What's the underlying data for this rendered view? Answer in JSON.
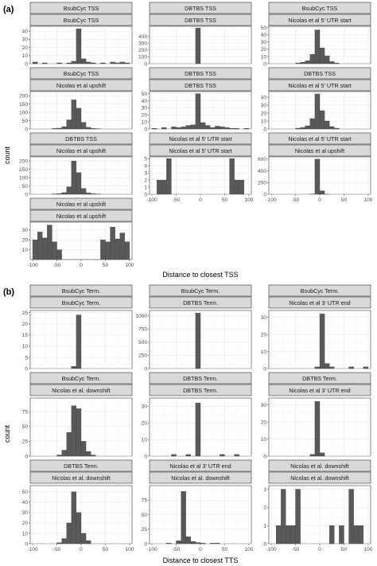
{
  "figure": {
    "panel_a_label": "(a)",
    "panel_b_label": "(b)",
    "ylabel": "count",
    "xlabel_a": "Distance to closest TSS",
    "xlabel_b": "Distance to closest TTS"
  },
  "chart_data": [
    {
      "type": "bar",
      "section": "a",
      "strips": [
        "BsubCyc TSS",
        "BsubCyc TSS"
      ],
      "x": [
        -95,
        -85,
        -75,
        -65,
        -55,
        -45,
        -35,
        -25,
        -15,
        -5,
        5,
        15,
        25,
        35,
        45,
        55,
        65,
        75,
        85,
        95
      ],
      "values": [
        2,
        0,
        1,
        0,
        0,
        1,
        0,
        1,
        3,
        43,
        6,
        2,
        1,
        0,
        1,
        0,
        2,
        1,
        2,
        1
      ],
      "ylim": [
        0,
        46
      ],
      "yticks": [
        0,
        10,
        20,
        30,
        40
      ],
      "xlim": [
        -105,
        105
      ],
      "xticks": [
        -100,
        -50,
        0,
        50,
        100
      ]
    },
    {
      "type": "bar",
      "section": "a",
      "strips": [
        "DBTBS TSS",
        "DBTBS TSS"
      ],
      "x": [
        -95,
        -85,
        -75,
        -65,
        -55,
        -45,
        -35,
        -25,
        -15,
        -5,
        5,
        15,
        25,
        35,
        45,
        55,
        65,
        75,
        85,
        95
      ],
      "values": [
        0,
        0,
        0,
        0,
        0,
        0,
        0,
        0,
        0,
        520,
        0,
        0,
        0,
        0,
        0,
        0,
        0,
        0,
        0,
        0
      ],
      "ylim": [
        0,
        545
      ],
      "yticks": [
        0,
        100,
        200,
        300,
        400
      ],
      "xlim": [
        -105,
        105
      ],
      "xticks": [
        -100,
        -50,
        0,
        50,
        100
      ]
    },
    {
      "type": "bar",
      "section": "a",
      "strips": [
        "BsubCyc TSS",
        "Nicolas et al 5' UTR start"
      ],
      "x": [
        -95,
        -85,
        -75,
        -65,
        -55,
        -45,
        -35,
        -25,
        -15,
        -5,
        5,
        15,
        25,
        35,
        45,
        55,
        65,
        75,
        85,
        95
      ],
      "values": [
        0,
        0,
        0,
        0,
        0,
        1,
        2,
        4,
        13,
        47,
        22,
        11,
        3,
        1,
        0,
        0,
        0,
        0,
        0,
        0
      ],
      "ylim": [
        0,
        52
      ],
      "yticks": [
        0,
        10,
        20,
        30,
        40,
        50
      ],
      "xlim": [
        -105,
        105
      ],
      "xticks": [
        -100,
        -50,
        0,
        50,
        100
      ]
    },
    {
      "type": "bar",
      "section": "a",
      "strips": [
        "BsubCyc TSS",
        "Nicolas et al upshift"
      ],
      "x": [
        -95,
        -85,
        -75,
        -65,
        -55,
        -45,
        -35,
        -25,
        -15,
        -5,
        5,
        15,
        25,
        35,
        45,
        55,
        65,
        75,
        85,
        95
      ],
      "values": [
        0,
        0,
        0,
        0,
        3,
        5,
        14,
        55,
        175,
        125,
        40,
        10,
        4,
        1,
        0,
        0,
        0,
        0,
        0,
        0
      ],
      "ylim": [
        0,
        225
      ],
      "yticks": [
        0,
        50,
        100,
        150,
        200
      ],
      "xlim": [
        -105,
        105
      ],
      "xticks": [
        -100,
        -50,
        0,
        50,
        100
      ]
    },
    {
      "type": "bar",
      "section": "a",
      "strips": [
        "DBTBS TSS",
        "DBTBS TSS"
      ],
      "x": [
        -95,
        -85,
        -75,
        -65,
        -55,
        -45,
        -35,
        -25,
        -15,
        -5,
        5,
        15,
        25,
        35,
        45,
        55,
        65,
        75,
        85,
        95
      ],
      "values": [
        1,
        0,
        2,
        0,
        3,
        2,
        3,
        5,
        6,
        50,
        9,
        5,
        2,
        4,
        3,
        2,
        1,
        1,
        0,
        1
      ],
      "ylim": [
        0,
        53
      ],
      "yticks": [
        0,
        10,
        20,
        30,
        40,
        50
      ],
      "xlim": [
        -105,
        105
      ],
      "xticks": [
        -100,
        -50,
        0,
        50,
        100
      ]
    },
    {
      "type": "bar",
      "section": "a",
      "strips": [
        "DBTBS TSS",
        "Nicolas et al 5' UTR start"
      ],
      "x": [
        -95,
        -85,
        -75,
        -65,
        -55,
        -45,
        -35,
        -25,
        -15,
        -5,
        5,
        15,
        25,
        35,
        45,
        55,
        65,
        75,
        85,
        95
      ],
      "values": [
        0,
        0,
        0,
        0,
        0,
        1,
        2,
        4,
        13,
        44,
        23,
        10,
        3,
        1,
        0,
        0,
        0,
        0,
        0,
        0
      ],
      "ylim": [
        0,
        47
      ],
      "yticks": [
        0,
        10,
        20,
        30,
        40
      ],
      "xlim": [
        -105,
        105
      ],
      "xticks": [
        -100,
        -50,
        0,
        50,
        100
      ]
    },
    {
      "type": "bar",
      "section": "a",
      "strips": [
        "DBTBS TSS",
        "Nicolas et al upshift"
      ],
      "x": [
        -95,
        -85,
        -75,
        -65,
        -55,
        -45,
        -35,
        -25,
        -15,
        -5,
        5,
        15,
        25,
        35,
        45,
        55,
        65,
        75,
        85,
        95
      ],
      "values": [
        0,
        0,
        0,
        0,
        2,
        4,
        10,
        45,
        200,
        130,
        35,
        8,
        3,
        1,
        0,
        0,
        0,
        0,
        0,
        0
      ],
      "ylim": [
        0,
        225
      ],
      "yticks": [
        0,
        50,
        100,
        150,
        200
      ],
      "xlim": [
        -105,
        105
      ],
      "xticks": [
        -100,
        -50,
        0,
        50,
        100
      ]
    },
    {
      "type": "bar",
      "section": "a",
      "strips": [
        "Nicolas et al 5' UTR start",
        "Nicolas et al 5' UTR start"
      ],
      "x": [
        -95,
        -85,
        -75,
        -65,
        -55,
        -45,
        -35,
        -25,
        -15,
        -5,
        5,
        15,
        25,
        35,
        45,
        55,
        65,
        75,
        85,
        95
      ],
      "values": [
        0,
        2,
        2,
        5,
        0,
        0,
        0,
        0,
        0,
        0,
        0,
        0,
        0,
        0,
        0,
        0,
        5,
        2,
        2,
        0
      ],
      "ylim": [
        0,
        5.25
      ],
      "yticks": [
        0,
        1,
        2,
        3,
        4,
        5
      ],
      "xlim": [
        -105,
        105
      ],
      "xticks": [
        -100,
        -50,
        0,
        50,
        100
      ]
    },
    {
      "type": "bar",
      "section": "a",
      "strips": [
        "Nicolas et al 5' UTR start",
        "Nicolas et al upshift"
      ],
      "x": [
        -95,
        -85,
        -75,
        -65,
        -55,
        -45,
        -35,
        -25,
        -15,
        -5,
        5,
        15,
        25,
        35,
        45,
        55,
        65,
        75,
        85,
        95
      ],
      "values": [
        0,
        0,
        0,
        0,
        0,
        0,
        0,
        0,
        3,
        600,
        60,
        2,
        0,
        0,
        0,
        0,
        0,
        0,
        0,
        0
      ],
      "ylim": [
        0,
        640
      ],
      "yticks": [
        0,
        200,
        400,
        600
      ],
      "xlim": [
        -105,
        105
      ],
      "xticks": [
        -100,
        -50,
        0,
        50,
        100
      ]
    },
    {
      "type": "bar",
      "section": "a",
      "strips": [
        "Nicolas et al upshift",
        "Nicolas et al upshift"
      ],
      "x": [
        -95,
        -85,
        -75,
        -65,
        -55,
        -45,
        -35,
        -25,
        -15,
        -5,
        5,
        15,
        25,
        35,
        45,
        55,
        65,
        75,
        85,
        95
      ],
      "values": [
        20,
        28,
        22,
        35,
        18,
        10,
        0,
        0,
        0,
        0,
        0,
        0,
        0,
        0,
        20,
        18,
        33,
        21,
        27,
        18
      ],
      "ylim": [
        0,
        38
      ],
      "yticks": [
        10,
        20,
        30
      ],
      "xlim": [
        -105,
        105
      ],
      "xticks": [
        -100,
        -50,
        0,
        50,
        100
      ]
    },
    {
      "type": "bar",
      "section": "b",
      "strips": [
        "BsubCyc Term.",
        "BsubCyc Term."
      ],
      "x": [
        -95,
        -85,
        -75,
        -65,
        -55,
        -45,
        -35,
        -25,
        -15,
        -5,
        5,
        15,
        25,
        35,
        45,
        55,
        65,
        75,
        85,
        95
      ],
      "values": [
        0,
        0,
        0,
        0,
        0,
        0,
        0,
        0,
        1,
        24,
        0,
        0,
        0,
        0,
        0,
        0,
        0,
        0,
        0,
        0
      ],
      "ylim": [
        0,
        26
      ],
      "yticks": [
        0,
        5,
        10,
        15,
        20,
        25
      ],
      "xlim": [
        -105,
        105
      ],
      "xticks": [
        -100,
        -50,
        0,
        50,
        100
      ]
    },
    {
      "type": "bar",
      "section": "b",
      "strips": [
        "BsubCyc Term.",
        "DBTBS Term."
      ],
      "x": [
        -95,
        -85,
        -75,
        -65,
        -55,
        -45,
        -35,
        -25,
        -15,
        -5,
        5,
        15,
        25,
        35,
        45,
        55,
        65,
        75,
        85,
        95
      ],
      "values": [
        0,
        0,
        0,
        0,
        0,
        0,
        0,
        0,
        0,
        1050,
        0,
        0,
        0,
        0,
        0,
        0,
        0,
        0,
        0,
        0
      ],
      "ylim": [
        0,
        1100
      ],
      "yticks": [
        0,
        250,
        500,
        750,
        1000
      ],
      "xlim": [
        -105,
        105
      ],
      "xticks": [
        -100,
        -50,
        0,
        50,
        100
      ]
    },
    {
      "type": "bar",
      "section": "b",
      "strips": [
        "BsubCyc Term.",
        "Nicolas et al 3' UTR end"
      ],
      "x": [
        -95,
        -85,
        -75,
        -65,
        -55,
        -45,
        -35,
        -25,
        -15,
        -5,
        5,
        15,
        25,
        35,
        45,
        55,
        65,
        75,
        85,
        95
      ],
      "values": [
        0,
        0,
        0,
        0,
        0,
        0,
        0,
        0,
        0,
        1,
        32,
        3,
        1,
        0,
        0,
        0,
        1,
        0,
        0,
        1
      ],
      "ylim": [
        0,
        34
      ],
      "yticks": [
        0,
        10,
        20,
        30
      ],
      "xlim": [
        -105,
        105
      ],
      "xticks": [
        -100,
        -50,
        0,
        50,
        100
      ]
    },
    {
      "type": "bar",
      "section": "b",
      "strips": [
        "BsubCyc Term.",
        "Nicolas et al. downshift"
      ],
      "x": [
        -95,
        -85,
        -75,
        -65,
        -55,
        -45,
        -35,
        -25,
        -15,
        -5,
        5,
        15,
        25,
        35,
        45,
        55,
        65,
        75,
        85,
        95
      ],
      "values": [
        0,
        0,
        0,
        0,
        0,
        2,
        10,
        40,
        85,
        80,
        25,
        8,
        2,
        0,
        0,
        0,
        0,
        0,
        0,
        0
      ],
      "ylim": [
        0,
        98
      ],
      "yticks": [
        0,
        25,
        50,
        75
      ],
      "xlim": [
        -105,
        105
      ],
      "xticks": [
        -100,
        -50,
        0,
        50,
        100
      ]
    },
    {
      "type": "bar",
      "section": "b",
      "strips": [
        "DBTBS Term.",
        "DBTBS Term."
      ],
      "x": [
        -95,
        -85,
        -75,
        -65,
        -55,
        -45,
        -35,
        -25,
        -15,
        -5,
        5,
        15,
        25,
        35,
        45,
        55,
        65,
        75,
        85,
        95
      ],
      "values": [
        0,
        0,
        0,
        0,
        1,
        0,
        0,
        1,
        0,
        32,
        0,
        0,
        0,
        0,
        1,
        0,
        0,
        1,
        0,
        0
      ],
      "ylim": [
        0,
        35
      ],
      "yticks": [
        0,
        10,
        20,
        30
      ],
      "xlim": [
        -105,
        105
      ],
      "xticks": [
        -100,
        -50,
        0,
        50,
        100
      ]
    },
    {
      "type": "bar",
      "section": "b",
      "strips": [
        "DBTBS Term.",
        "Nicolas et al 3' UTR end"
      ],
      "x": [
        -95,
        -85,
        -75,
        -65,
        -55,
        -45,
        -35,
        -25,
        -15,
        -5,
        5,
        15,
        25,
        35,
        45,
        55,
        65,
        75,
        85,
        95
      ],
      "values": [
        0,
        0,
        0,
        0,
        0,
        0,
        0,
        0,
        1,
        32,
        2,
        0,
        0,
        0,
        0,
        0,
        0,
        0,
        0,
        0
      ],
      "ylim": [
        0,
        34
      ],
      "yticks": [
        0,
        10,
        20,
        30
      ],
      "xlim": [
        -105,
        105
      ],
      "xticks": [
        -100,
        -50,
        0,
        50,
        100
      ]
    },
    {
      "type": "bar",
      "section": "b",
      "strips": [
        "DBTBS Term.",
        "Nicolas et al. downshift"
      ],
      "x": [
        -95,
        -85,
        -75,
        -65,
        -55,
        -45,
        -35,
        -25,
        -15,
        -5,
        5,
        15,
        25,
        35,
        45,
        55,
        65,
        75,
        85,
        95
      ],
      "values": [
        0,
        0,
        0,
        0,
        0,
        1,
        5,
        20,
        50,
        30,
        10,
        3,
        0,
        0,
        0,
        0,
        0,
        0,
        0,
        0
      ],
      "ylim": [
        0,
        56
      ],
      "yticks": [
        0,
        10,
        20,
        30,
        40,
        50
      ],
      "xlim": [
        -105,
        105
      ],
      "xticks": [
        -100,
        -50,
        0,
        50,
        100
      ]
    },
    {
      "type": "bar",
      "section": "b",
      "strips": [
        "Nicolas et al 3' UTR end",
        "Nicolas et al. downshift"
      ],
      "x": [
        -95,
        -85,
        -75,
        -65,
        -55,
        -45,
        -35,
        -25,
        -15,
        -5,
        5,
        15,
        25,
        35,
        45,
        55,
        65,
        75,
        85,
        95
      ],
      "values": [
        0,
        0,
        0,
        1,
        0,
        5,
        90,
        12,
        4,
        2,
        1,
        0,
        1,
        1,
        0,
        0,
        0,
        0,
        0,
        0
      ],
      "ylim": [
        0,
        100
      ],
      "yticks": [
        0,
        25,
        50,
        75
      ],
      "xlim": [
        -105,
        105
      ],
      "xticks": [
        -100,
        -50,
        0,
        50,
        100
      ]
    },
    {
      "type": "bar",
      "section": "b",
      "strips": [
        "Nicolas et al. downshift",
        "Nicolas et al. downshift"
      ],
      "x": [
        -95,
        -85,
        -75,
        -65,
        -55,
        -45,
        -35,
        -25,
        -15,
        -5,
        5,
        15,
        25,
        35,
        45,
        55,
        65,
        75,
        85,
        95
      ],
      "values": [
        0,
        1,
        3,
        1,
        1,
        3,
        0,
        0,
        0,
        0,
        0,
        0,
        1,
        0,
        1,
        0,
        3,
        1,
        1,
        0
      ],
      "ylim": [
        0,
        3.2
      ],
      "yticks": [
        0,
        1,
        2,
        3
      ],
      "xlim": [
        -105,
        105
      ],
      "xticks": [
        -100,
        -50,
        0,
        50,
        100
      ]
    }
  ]
}
